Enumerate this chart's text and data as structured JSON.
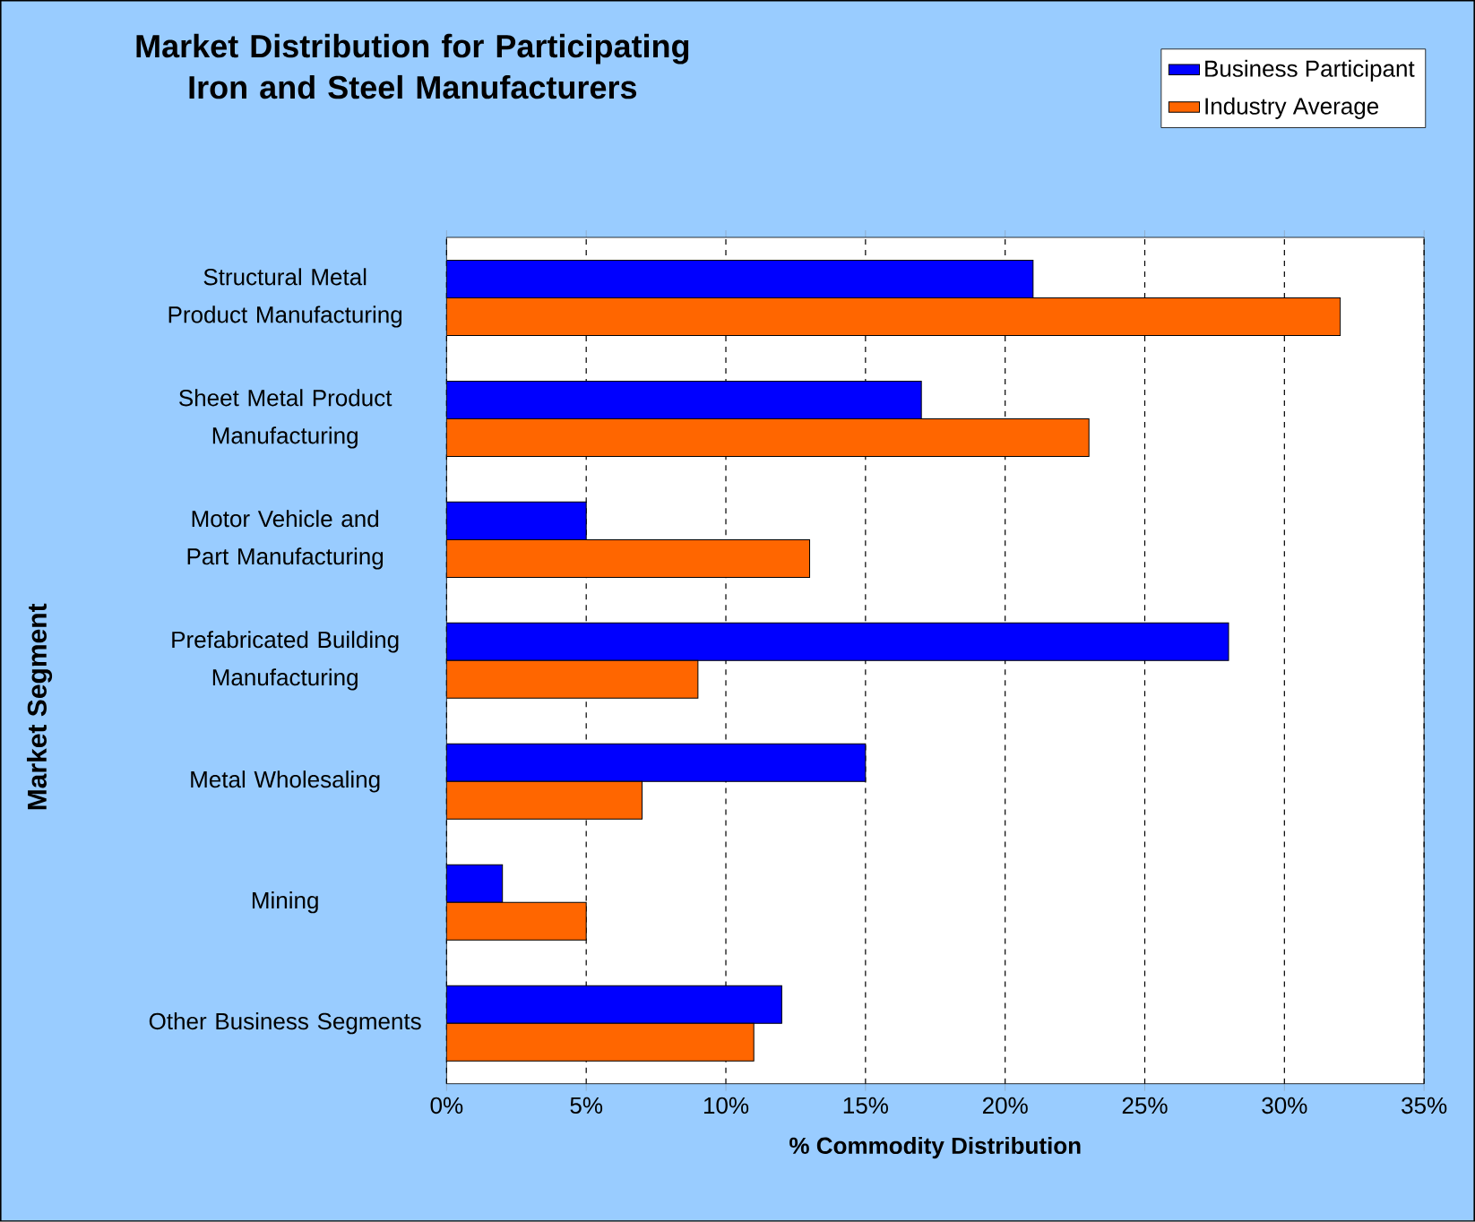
{
  "chart_data": {
    "type": "bar",
    "orientation": "horizontal",
    "title": "Market Distribution for Participating Iron and Steel Manufacturers",
    "xlabel": "% Commodity Distribution",
    "ylabel": "Market Segment",
    "categories": [
      "Structural Metal Product Manufacturing",
      "Sheet Metal Product Manufacturing",
      "Motor Vehicle and Part Manufacturing",
      "Prefabricated Building Manufacturing",
      "Metal Wholesaling",
      "Mining",
      "Other Business Segments"
    ],
    "series": [
      {
        "name": "Business Participant",
        "color": "#0000ff",
        "values": [
          21,
          17,
          5,
          28,
          15,
          2,
          12
        ]
      },
      {
        "name": "Industry Average",
        "color": "#ff6600",
        "values": [
          32,
          23,
          13,
          9,
          7,
          5,
          11
        ]
      }
    ],
    "xlim": [
      0,
      35
    ],
    "xticks": [
      {
        "value": 0,
        "label": "0%"
      },
      {
        "value": 5,
        "label": "5%"
      },
      {
        "value": 10,
        "label": "10%"
      },
      {
        "value": 15,
        "label": "15%"
      },
      {
        "value": 20,
        "label": "20%"
      },
      {
        "value": 25,
        "label": "25%"
      },
      {
        "value": 30,
        "label": "30%"
      },
      {
        "value": 35,
        "label": "35%"
      }
    ],
    "grid": "x",
    "legend": "top right"
  }
}
